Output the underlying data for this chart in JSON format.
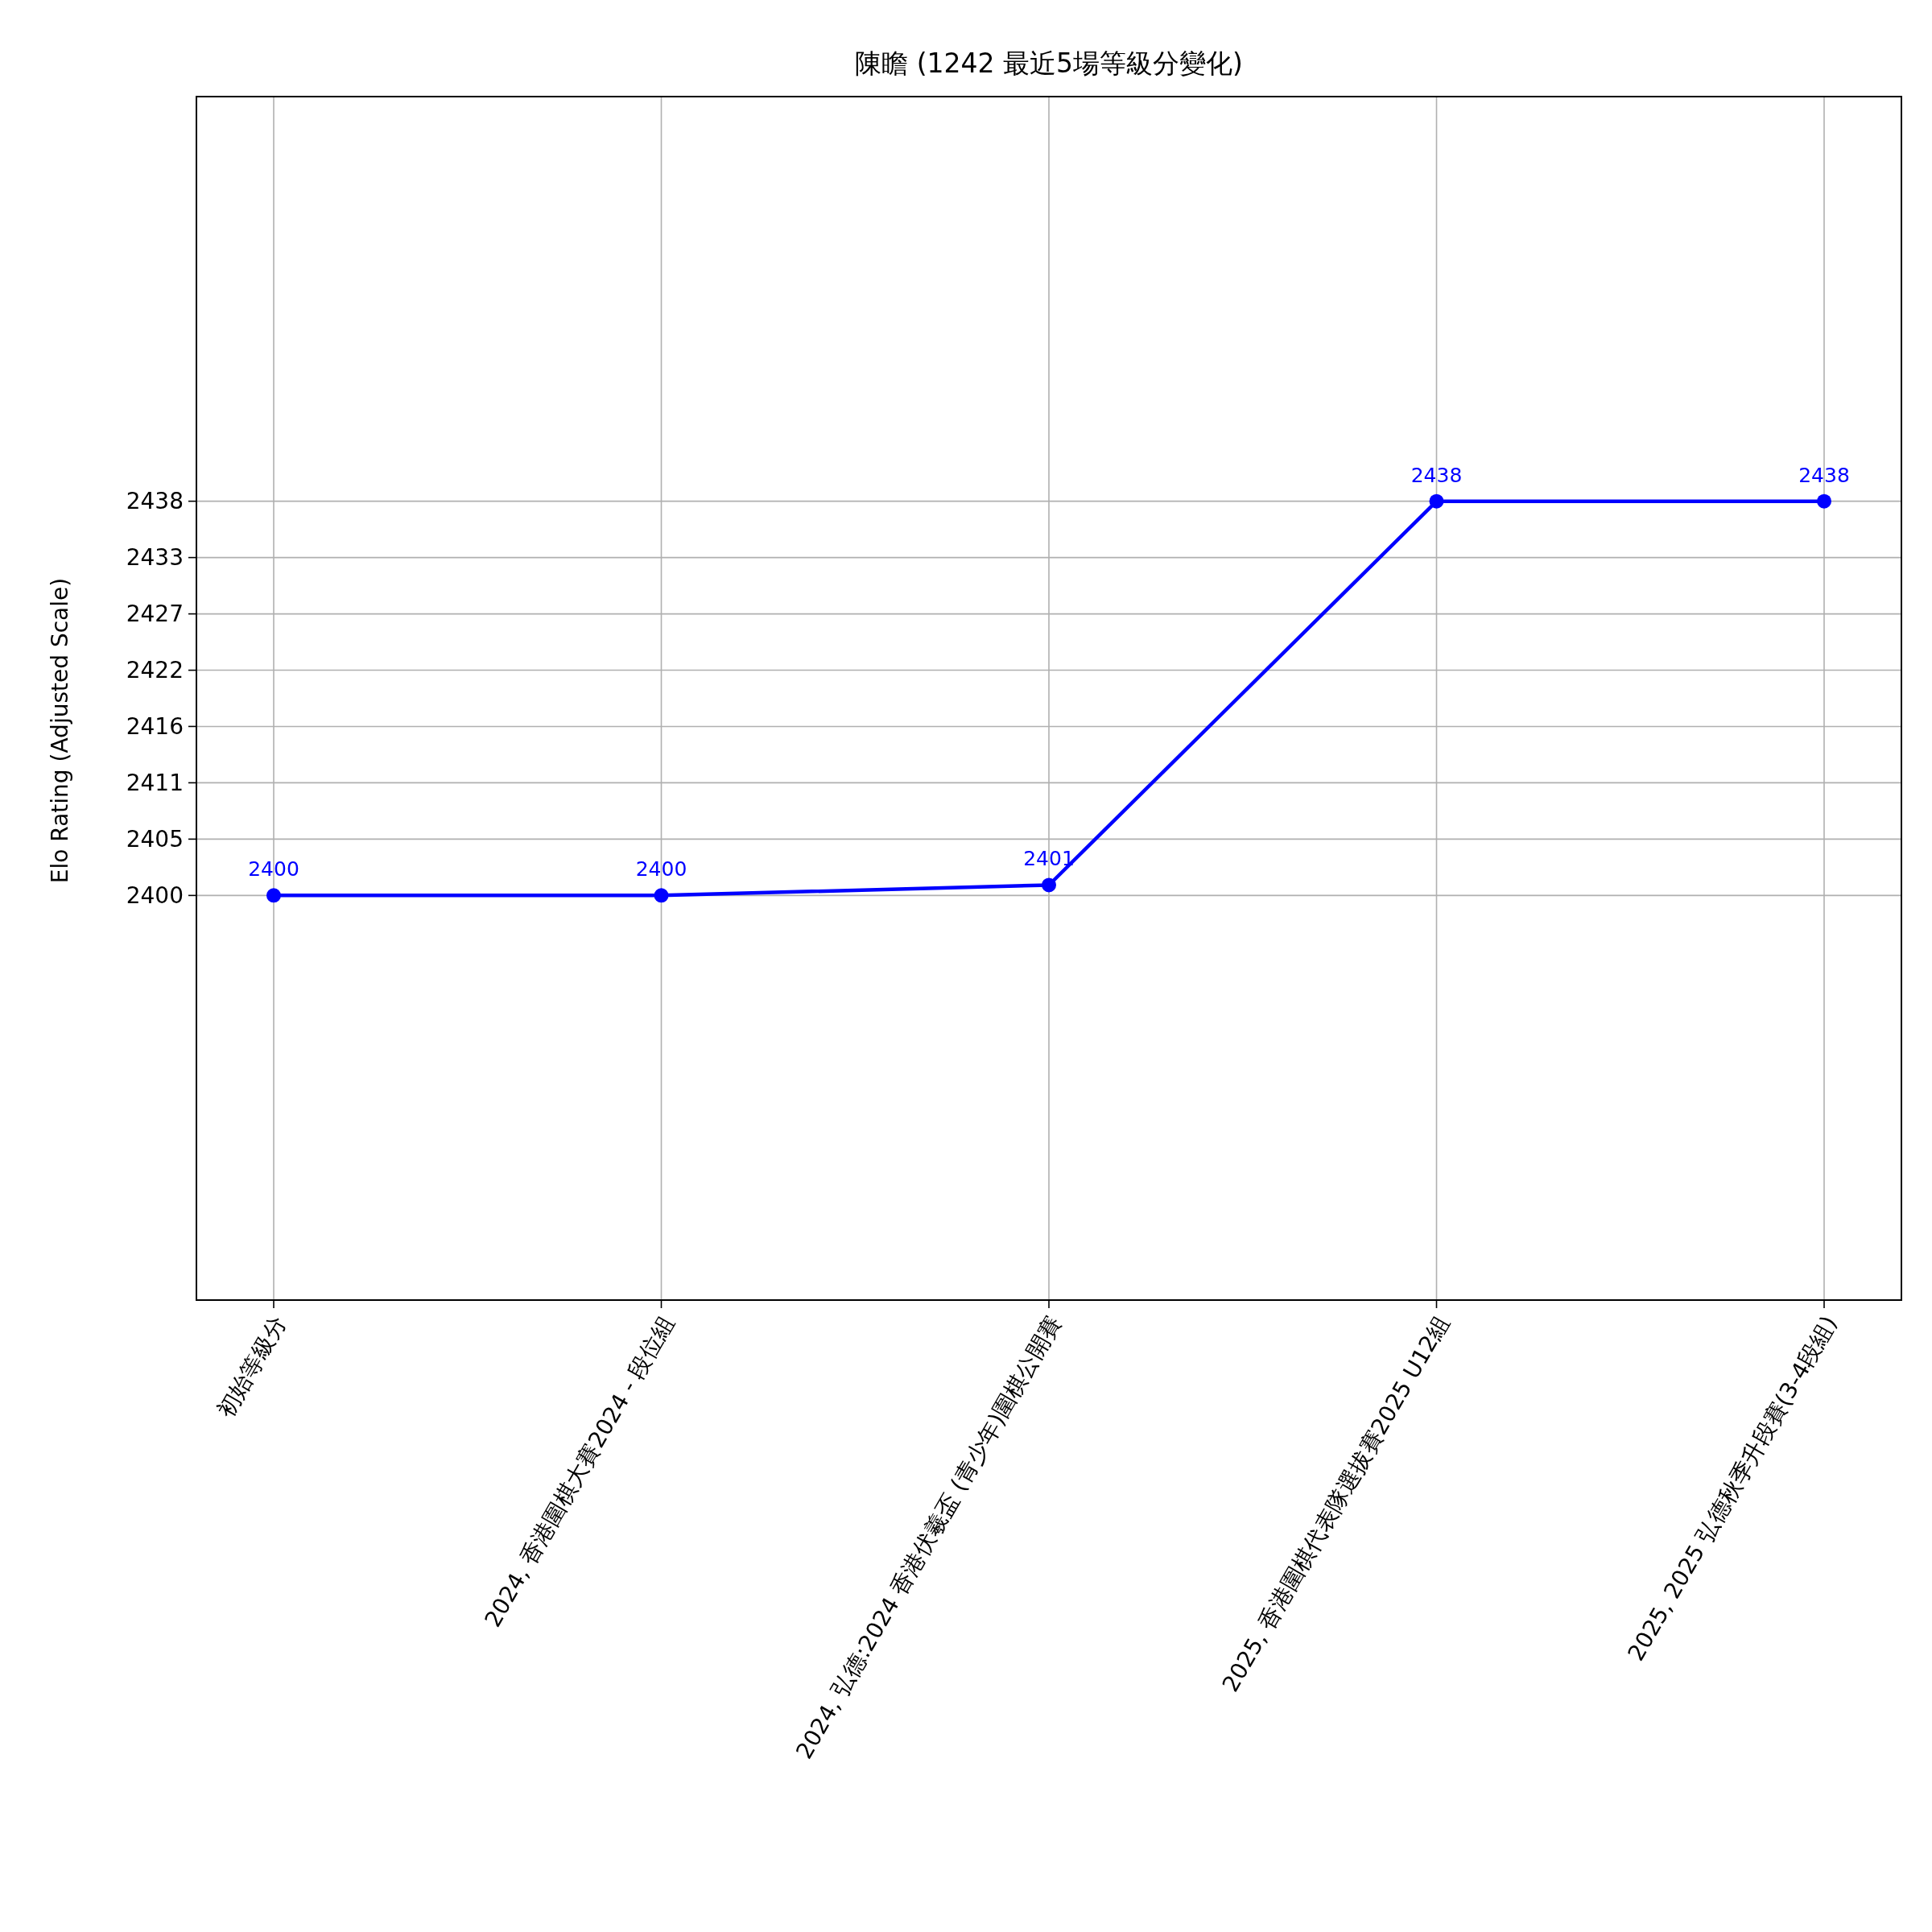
{
  "chart_data": {
    "type": "line",
    "title": "陳瞻 (1242 最近5場等級分變化)",
    "ylabel": "Elo Rating (Adjusted Scale)",
    "categories": [
      "初始等級分",
      "2024, 香港圍棋大賽2024 - 段位組",
      "2024, 弘德:2024 香港伏羲盃 (青少年)圍棋公開賽",
      "2025, 香港圍棋代表隊選拔賽2025 U12組",
      "2025, 2025 弘德秋季升段賽(3-4段組)"
    ],
    "series": [
      {
        "color": "#0000ff",
        "values": [
          2400,
          2400,
          2401,
          2438,
          2438
        ],
        "value_labels": [
          "2400",
          "2400",
          "2401",
          "2438",
          "2438"
        ]
      }
    ],
    "ylim": [
      2361,
      2477
    ],
    "yticks": [
      2400,
      {
        "value": 2405.43,
        "label": "2405"
      },
      {
        "value": 2410.86,
        "label": "2411"
      },
      {
        "value": 2416.29,
        "label": "2416"
      },
      {
        "value": 2421.71,
        "label": "2422"
      },
      {
        "value": 2427.14,
        "label": "2427"
      },
      {
        "value": 2432.57,
        "label": "2433"
      },
      2438
    ],
    "grid": true,
    "marker": "circle",
    "line_style": "solid"
  }
}
